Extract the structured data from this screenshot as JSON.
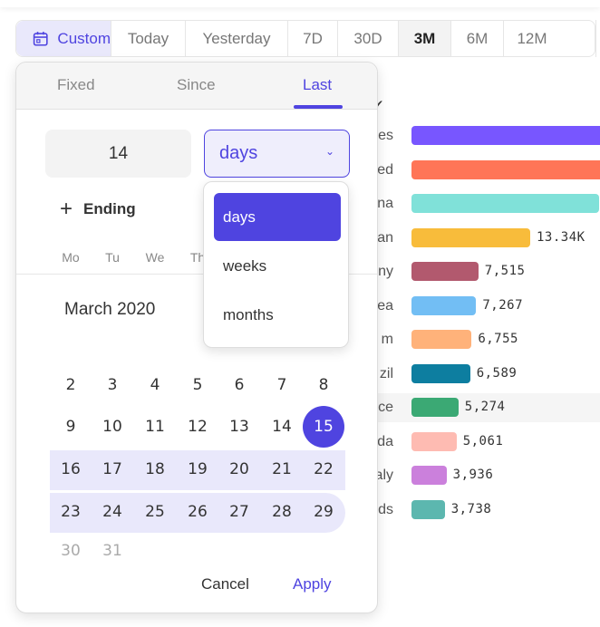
{
  "range_bar": {
    "custom_label": "Custom",
    "presets": [
      "Today",
      "Yesterday",
      "7D",
      "30D",
      "3M",
      "6M",
      "12M"
    ],
    "active": "3M",
    "accent": "#4f44e0"
  },
  "chart_data": {
    "type": "bar",
    "orientation": "horizontal",
    "categories": [
      "es",
      "ed",
      "na",
      "an",
      "ny",
      "ea",
      "m",
      "zil",
      "ce",
      "da",
      "aly",
      "ds"
    ],
    "values": [
      null,
      null,
      null,
      13340,
      7515,
      7267,
      6755,
      6589,
      5274,
      5061,
      3936,
      3738
    ],
    "value_labels": [
      "",
      "",
      "",
      "13.34K",
      "7,515",
      "7,267",
      "6,755",
      "6,589",
      "5,274",
      "5,061",
      "3,936",
      "3,738"
    ],
    "colors": [
      "#7856ff",
      "#ff7557",
      "#80e1d9",
      "#f8bc3b",
      "#b2596e",
      "#72bef4",
      "#ffb27a",
      "#0d7ea0",
      "#3ba974",
      "#febbb2",
      "#cb80dc",
      "#5cb7af"
    ],
    "highlighted": "ce"
  },
  "popup": {
    "tabs": [
      "Fixed",
      "Since",
      "Last"
    ],
    "active_tab": "Last",
    "amount": "14",
    "unit": "days",
    "ending_label": "Ending",
    "weekdays": [
      "Mo",
      "Tu",
      "We",
      "Th"
    ],
    "month": "March 2020",
    "weeks": [
      [
        "2",
        "3",
        "4",
        "5",
        "6",
        "7",
        "8"
      ],
      [
        "9",
        "10",
        "11",
        "12",
        "13",
        "14",
        "15"
      ],
      [
        "16",
        "17",
        "18",
        "19",
        "20",
        "21",
        "22"
      ],
      [
        "23",
        "24",
        "25",
        "26",
        "27",
        "28",
        "29"
      ],
      [
        "30",
        "31"
      ]
    ],
    "selected_day": "15",
    "cancel": "Cancel",
    "apply": "Apply"
  },
  "unit_menu": {
    "options": [
      "days",
      "weeks",
      "months"
    ],
    "selected": "days"
  }
}
